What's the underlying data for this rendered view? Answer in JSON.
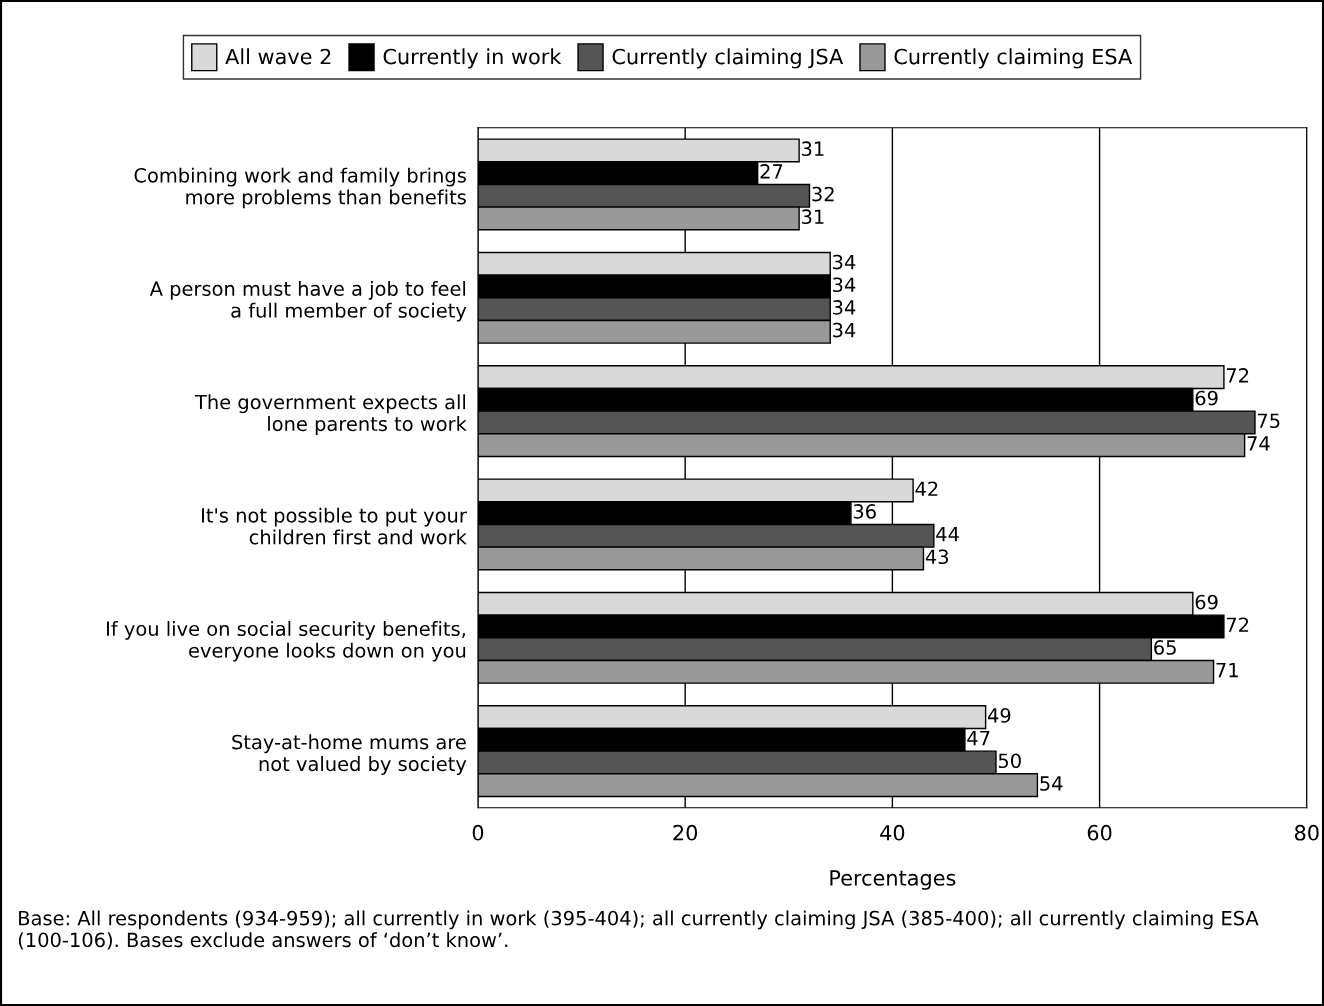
{
  "chart_data": {
    "type": "bar",
    "orientation": "horizontal",
    "xlabel": "Percentages",
    "categories": [
      "Combining work and family brings\nmore problems than benefits",
      "A person must have a job to feel\na full member of society",
      "The government expects all\nlone parents to work",
      "It's not possible to put your\nchildren first and work",
      "If you live on social security benefits,\neveryone looks down on you",
      "Stay-at-home mums are\nnot valued by society"
    ],
    "series": [
      {
        "name": "All wave 2",
        "color": "#d9d9d9",
        "values": [
          31,
          34,
          72,
          42,
          69,
          49
        ]
      },
      {
        "name": "Currently in work",
        "color": "#000000",
        "values": [
          27,
          34,
          69,
          36,
          72,
          47
        ]
      },
      {
        "name": "Currently claiming JSA",
        "color": "#555555",
        "values": [
          32,
          34,
          75,
          44,
          65,
          50
        ]
      },
      {
        "name": "Currently claiming ESA",
        "color": "#999999",
        "values": [
          31,
          34,
          74,
          43,
          71,
          54
        ]
      }
    ],
    "xlim": [
      0,
      80
    ],
    "xticks": [
      0,
      20,
      40,
      60,
      80
    ],
    "grid": "x",
    "legend": "top",
    "data_labels": true,
    "annotations": [
      "Base: All respondents (934-959); all currently in work (395-404); all currently claiming JSA (385-400); all currently claiming ESA (100-106). Bases exclude answers of ‘don’t know’."
    ]
  }
}
